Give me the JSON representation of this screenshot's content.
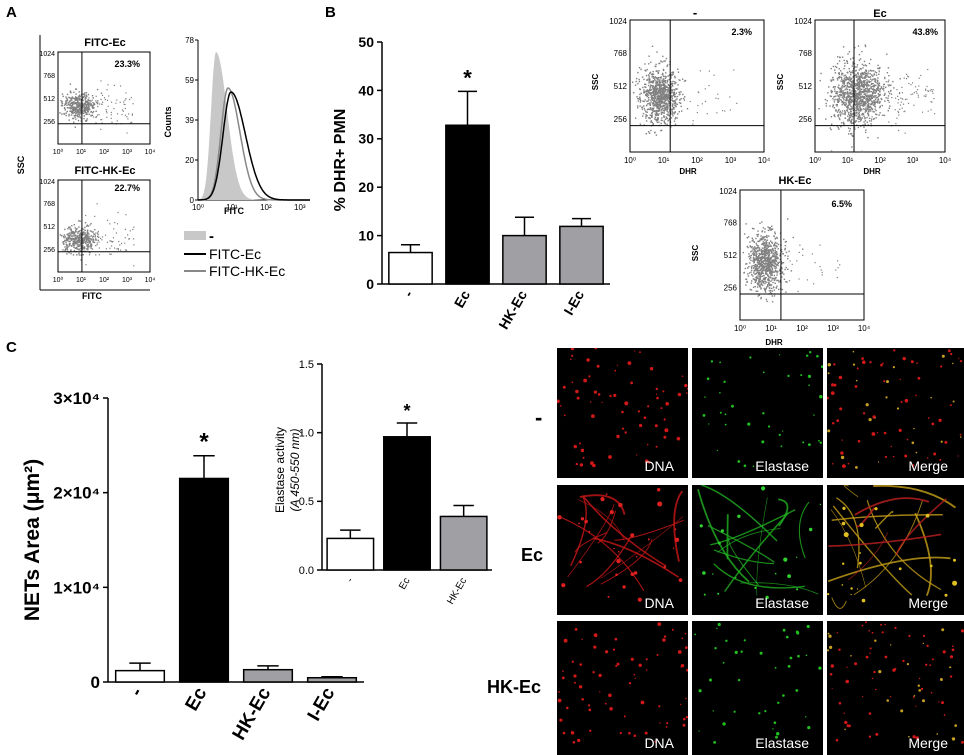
{
  "panel_labels": {
    "a": "A",
    "b": "B",
    "c": "C"
  },
  "panel_a": {
    "dot_plots": [
      {
        "title": "FITC-Ec",
        "percent": "23.3%",
        "x_ticks": [
          "10⁰",
          "10¹",
          "10²",
          "10³",
          "10⁴"
        ],
        "y_ticks": [
          "1024",
          "768",
          "512",
          "256"
        ]
      },
      {
        "title": "FITC-HK-Ec",
        "percent": "22.7%",
        "x_ticks": [
          "10⁰",
          "10¹",
          "10²",
          "10³",
          "10⁴"
        ],
        "y_ticks": [
          "1024",
          "768",
          "512",
          "256"
        ]
      }
    ],
    "ylabel": "SSC",
    "xlabel": "FITC",
    "histogram": {
      "ylabel": "Counts",
      "xlabel": "FITC",
      "y_ticks": [
        "0",
        "20",
        "39",
        "59",
        "78"
      ],
      "x_ticks": [
        "10⁰",
        "10¹",
        "10²",
        "10³"
      ]
    },
    "legend": [
      "-",
      "FITC-Ec",
      "FITC-HK-Ec"
    ]
  },
  "panel_b_dots": [
    {
      "title": "-",
      "percent": "2.3%",
      "xlabel": "DHR",
      "ylabel": "SSC"
    },
    {
      "title": "Ec",
      "percent": "43.8%",
      "xlabel": "DHR",
      "ylabel": "SSC"
    },
    {
      "title": "HK-Ec",
      "percent": "6.5%",
      "xlabel": "DHR",
      "ylabel": "SSC"
    }
  ],
  "dot_axis": {
    "x_ticks": [
      "10⁰",
      "10¹",
      "10²",
      "10³",
      "10⁴"
    ],
    "y_ticks": [
      "1024",
      "768",
      "512",
      "256"
    ]
  },
  "chart_data": [
    {
      "type": "bar",
      "id": "dhr",
      "categories": [
        "-",
        "Ec",
        "HK-Ec",
        "I-Ec"
      ],
      "values": [
        6.5,
        32.8,
        10,
        11.9
      ],
      "errors": [
        1.6,
        7,
        3.8,
        1.6
      ],
      "colors": [
        "#ffffff",
        "#000000",
        "#a0a0a4",
        "#a0a0a4"
      ],
      "ylabel": "% DHR+ PMN",
      "ylim": [
        0,
        50
      ],
      "yticks": [
        "0",
        "10",
        "20",
        "30",
        "40",
        "50"
      ],
      "significance": {
        "category": "Ec",
        "mark": "*"
      }
    },
    {
      "type": "bar",
      "id": "nets",
      "categories": [
        "-",
        "Ec",
        "HK-Ec",
        "I-Ec"
      ],
      "values": [
        1200,
        21500,
        1300,
        450
      ],
      "errors": [
        800,
        2400,
        400,
        100
      ],
      "colors": [
        "#ffffff",
        "#000000",
        "#a0a0a4",
        "#a0a0a4"
      ],
      "ylabel": "NETs Area (μm²)",
      "ylim": [
        0,
        30000
      ],
      "yticks": [
        "0",
        "1×10⁴",
        "2×10⁴",
        "3×10⁴"
      ],
      "significance": {
        "category": "Ec",
        "mark": "*"
      }
    },
    {
      "type": "bar",
      "id": "elastase",
      "categories": [
        "-",
        "Ec",
        "HK-Ec"
      ],
      "values": [
        0.23,
        0.97,
        0.39
      ],
      "errors": [
        0.06,
        0.1,
        0.08
      ],
      "colors": [
        "#ffffff",
        "#000000",
        "#a0a0a4"
      ],
      "ylabel": "Elastase activity",
      "ylabel2": "(A 450-550 nm)",
      "ylim": [
        0,
        1.5
      ],
      "yticks": [
        "0.0",
        "0.5",
        "1.0",
        "1.5"
      ],
      "significance": {
        "category": "Ec",
        "mark": "*"
      }
    }
  ],
  "microscopy": {
    "rows": [
      "-",
      "Ec",
      "HK-Ec"
    ],
    "columns": [
      "DNA",
      "Elastase",
      "Merge"
    ]
  }
}
